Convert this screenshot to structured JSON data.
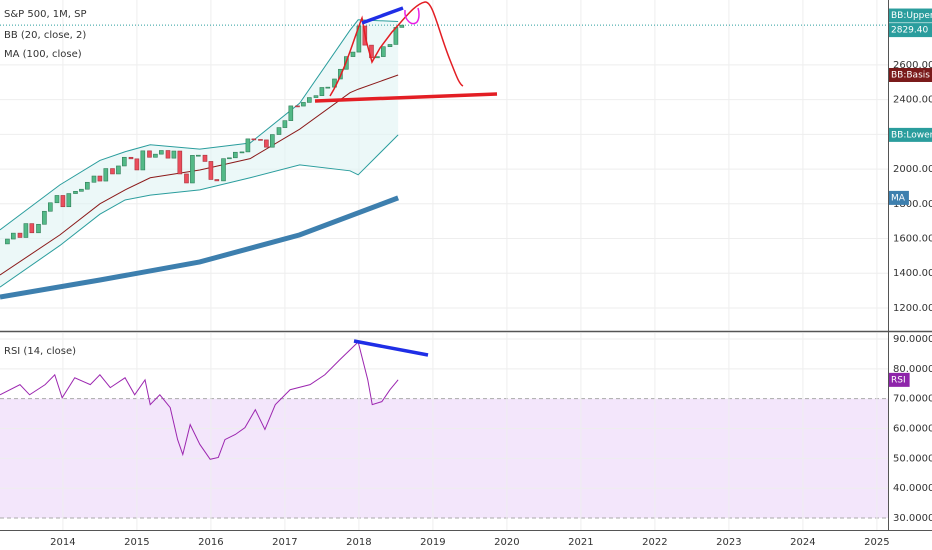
{
  "chart_data": [
    {
      "type": "candlestick",
      "title": "S&P 500, 1M, SP",
      "indicators": [
        "BB (20, close, 2)",
        "MA (100, close)"
      ],
      "xlim": [
        2013.15,
        2025.15
      ],
      "ylim": [
        1073,
        2974
      ],
      "yticks": [
        {
          "value": 1200,
          "label": "1200.00"
        },
        {
          "value": 1400,
          "label": "1400.00"
        },
        {
          "value": 1600,
          "label": "1600.00"
        },
        {
          "value": 1800,
          "label": "1800.00"
        },
        {
          "value": 2000,
          "label": "2000.00"
        },
        {
          "value": 2200,
          "label": "2200.00"
        },
        {
          "value": 2400,
          "label": "2400.00"
        },
        {
          "value": 2600,
          "label": "2600.00"
        }
      ],
      "last_price": {
        "value": 2829.4,
        "label": "2829.40"
      },
      "up_color": "#53b987",
      "down_color": "#eb4d5c",
      "grid": true,
      "x": [
        2013.25,
        2013.33,
        2013.42,
        2013.5,
        2013.58,
        2013.67,
        2013.75,
        2013.83,
        2013.92,
        2014.0,
        2014.08,
        2014.17,
        2014.25,
        2014.33,
        2014.42,
        2014.5,
        2014.58,
        2014.67,
        2014.75,
        2014.83,
        2014.92,
        2015.0,
        2015.08,
        2015.17,
        2015.25,
        2015.33,
        2015.42,
        2015.5,
        2015.58,
        2015.67,
        2015.75,
        2015.83,
        2015.92,
        2016.0,
        2016.08,
        2016.17,
        2016.25,
        2016.33,
        2016.42,
        2016.5,
        2016.58,
        2016.67,
        2016.75,
        2016.83,
        2016.92,
        2017.0,
        2017.08,
        2017.17,
        2017.25,
        2017.33,
        2017.42,
        2017.5,
        2017.58,
        2017.67,
        2017.75,
        2017.83,
        2017.92,
        2018.0,
        2018.08,
        2018.17,
        2018.25,
        2018.33,
        2018.42,
        2018.5,
        2018.58
      ],
      "open": [
        1569,
        1597,
        1631,
        1606,
        1686,
        1633,
        1682,
        1757,
        1806,
        1848,
        1783,
        1859,
        1872,
        1884,
        1924,
        1960,
        1931,
        2003,
        1972,
        2018,
        2068,
        2059,
        1995,
        2105,
        2068,
        2086,
        2107,
        2063,
        2104,
        1972,
        1920,
        2079,
        2080,
        2044,
        1940,
        1932,
        2060,
        2065,
        2097,
        2099,
        2174,
        2171,
        2168,
        2126,
        2199,
        2239,
        2279,
        2364,
        2363,
        2384,
        2412,
        2423,
        2470,
        2472,
        2519,
        2575,
        2648,
        2674,
        2824,
        2714,
        2641,
        2648,
        2705,
        2718,
        2816
      ],
      "close": [
        1597,
        1631,
        1606,
        1686,
        1633,
        1682,
        1757,
        1806,
        1848,
        1783,
        1859,
        1872,
        1884,
        1924,
        1960,
        1931,
        2003,
        1972,
        2018,
        2068,
        2059,
        1995,
        2105,
        2068,
        2086,
        2107,
        2063,
        2104,
        1972,
        1920,
        2079,
        2080,
        2044,
        1940,
        1932,
        2060,
        2065,
        2097,
        2099,
        2174,
        2171,
        2168,
        2126,
        2199,
        2239,
        2279,
        2364,
        2363,
        2384,
        2412,
        2423,
        2470,
        2472,
        2519,
        2575,
        2648,
        2674,
        2824,
        2714,
        2641,
        2648,
        2705,
        2718,
        2816,
        2829.4
      ],
      "series": [
        {
          "name": "BB:Upper",
          "color": "#2a9d9d",
          "x": [
            2013.15,
            2013.96,
            2014.5,
            2014.84,
            2015.18,
            2015.85,
            2016.53,
            2017.2,
            2017.88,
            2017.99,
            2018.53
          ],
          "values": [
            1650,
            1909,
            2050,
            2100,
            2140,
            2115,
            2150,
            2380,
            2800,
            2860,
            2850
          ]
        },
        {
          "name": "BB:Basis",
          "color": "#8b1a1a",
          "x": [
            2013.15,
            2013.96,
            2014.5,
            2014.84,
            2015.18,
            2015.85,
            2016.53,
            2017.2,
            2017.88,
            2017.99,
            2018.53
          ],
          "values": [
            1390,
            1621,
            1800,
            1880,
            1950,
            1995,
            2060,
            2230,
            2440,
            2460,
            2542
          ]
        },
        {
          "name": "BB:Lower",
          "color": "#2a9d9d",
          "x": [
            2013.15,
            2013.96,
            2014.5,
            2014.84,
            2015.18,
            2015.85,
            2016.53,
            2017.2,
            2017.88,
            2017.99,
            2018.53
          ],
          "values": [
            1320,
            1560,
            1740,
            1822,
            1850,
            1880,
            1950,
            2024,
            1990,
            1967,
            2197
          ]
        },
        {
          "name": "MA",
          "color": "#3d7fae",
          "x": [
            2013.15,
            2014.5,
            2015.85,
            2017.2,
            2018.53
          ],
          "values": [
            1263,
            1361,
            1465,
            1621,
            1834
          ]
        }
      ]
    },
    {
      "type": "line",
      "title": "RSI (14, close)",
      "xlim": [
        2013.15,
        2025.15
      ],
      "ylim": [
        26,
        92
      ],
      "band": [
        30,
        70
      ],
      "grid": true,
      "xticks": [
        2014,
        2015,
        2016,
        2017,
        2018,
        2019,
        2020,
        2021,
        2022,
        2023,
        2024,
        2025
      ],
      "yticks": [
        {
          "value": 30,
          "label": "30.0000"
        },
        {
          "value": 40,
          "label": "40.0000"
        },
        {
          "value": 50,
          "label": "50.0000"
        },
        {
          "value": 60,
          "label": "60.0000"
        },
        {
          "value": 70,
          "label": "70.0000"
        },
        {
          "value": 80,
          "label": "80.0000"
        },
        {
          "value": 90,
          "label": "90.0000"
        }
      ],
      "series": [
        {
          "name": "RSI",
          "color": "#9c27b0",
          "x": [
            2013.15,
            2013.42,
            2013.55,
            2013.76,
            2013.89,
            2013.99,
            2014.16,
            2014.37,
            2014.5,
            2014.64,
            2014.84,
            2014.97,
            2015.11,
            2015.18,
            2015.31,
            2015.45,
            2015.55,
            2015.62,
            2015.72,
            2015.85,
            2015.99,
            2016.1,
            2016.19,
            2016.33,
            2016.46,
            2016.6,
            2016.73,
            2016.87,
            2017.07,
            2017.34,
            2017.54,
            2017.74,
            2017.99,
            2018.12,
            2018.18,
            2018.31,
            2018.42,
            2018.53
          ],
          "values": [
            71.3,
            74.7,
            71.3,
            74.7,
            78,
            70.3,
            77,
            74.7,
            78,
            73.7,
            77,
            71.3,
            76.3,
            68,
            71.3,
            67,
            56.3,
            51.3,
            61.3,
            54.7,
            49.7,
            50.3,
            56.3,
            58,
            60.3,
            66.3,
            59.7,
            68,
            73,
            74.7,
            78,
            83,
            89,
            76.3,
            68,
            69,
            73,
            76.3
          ]
        }
      ]
    }
  ]
}
